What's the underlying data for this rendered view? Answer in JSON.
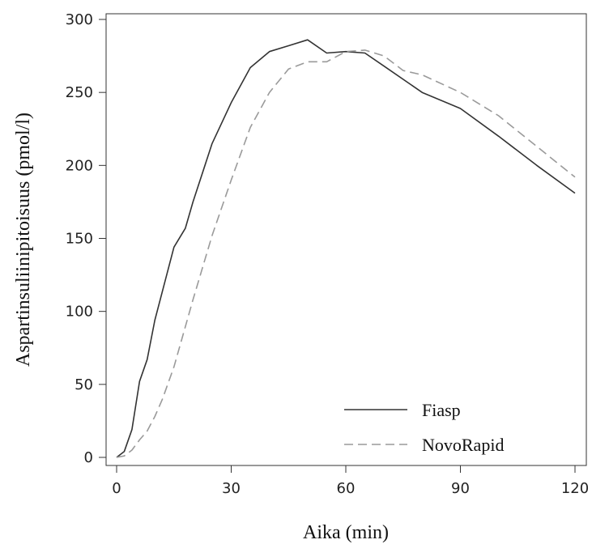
{
  "chart_data": {
    "type": "line",
    "xlabel": "Aika (min)",
    "ylabel": "Aspartinsuliinipitoisuus (pmol/l)",
    "xlim": [
      0,
      120
    ],
    "ylim": [
      0,
      300
    ],
    "x_ticks": [
      0,
      30,
      60,
      90,
      120
    ],
    "y_ticks": [
      0,
      50,
      100,
      150,
      200,
      250,
      300
    ],
    "grid": false,
    "legend_position": "bottom-right",
    "series": [
      {
        "name": "Fiasp",
        "style": "solid",
        "color": "#333333",
        "x": [
          0,
          2,
          4,
          6,
          8,
          10,
          15,
          18,
          20,
          25,
          30,
          35,
          40,
          45,
          50,
          55,
          60,
          65,
          70,
          80,
          90,
          100,
          110,
          120
        ],
        "y": [
          0,
          4,
          19,
          52,
          67,
          94,
          144,
          157,
          175,
          215,
          243,
          267,
          278,
          282,
          286,
          277,
          278,
          277,
          268,
          250,
          239,
          220,
          200,
          181
        ]
      },
      {
        "name": "NovoRapid",
        "style": "dashed",
        "color": "#9a9a9a",
        "x": [
          0,
          2,
          4,
          6,
          8,
          10,
          12,
          15,
          20,
          25,
          30,
          35,
          40,
          45,
          50,
          55,
          60,
          65,
          70,
          75,
          80,
          90,
          100,
          110,
          120
        ],
        "y": [
          0,
          1,
          5,
          12,
          18,
          28,
          40,
          62,
          108,
          152,
          190,
          226,
          250,
          266,
          271,
          271,
          278,
          279,
          275,
          265,
          262,
          250,
          234,
          213,
          192
        ]
      }
    ]
  }
}
